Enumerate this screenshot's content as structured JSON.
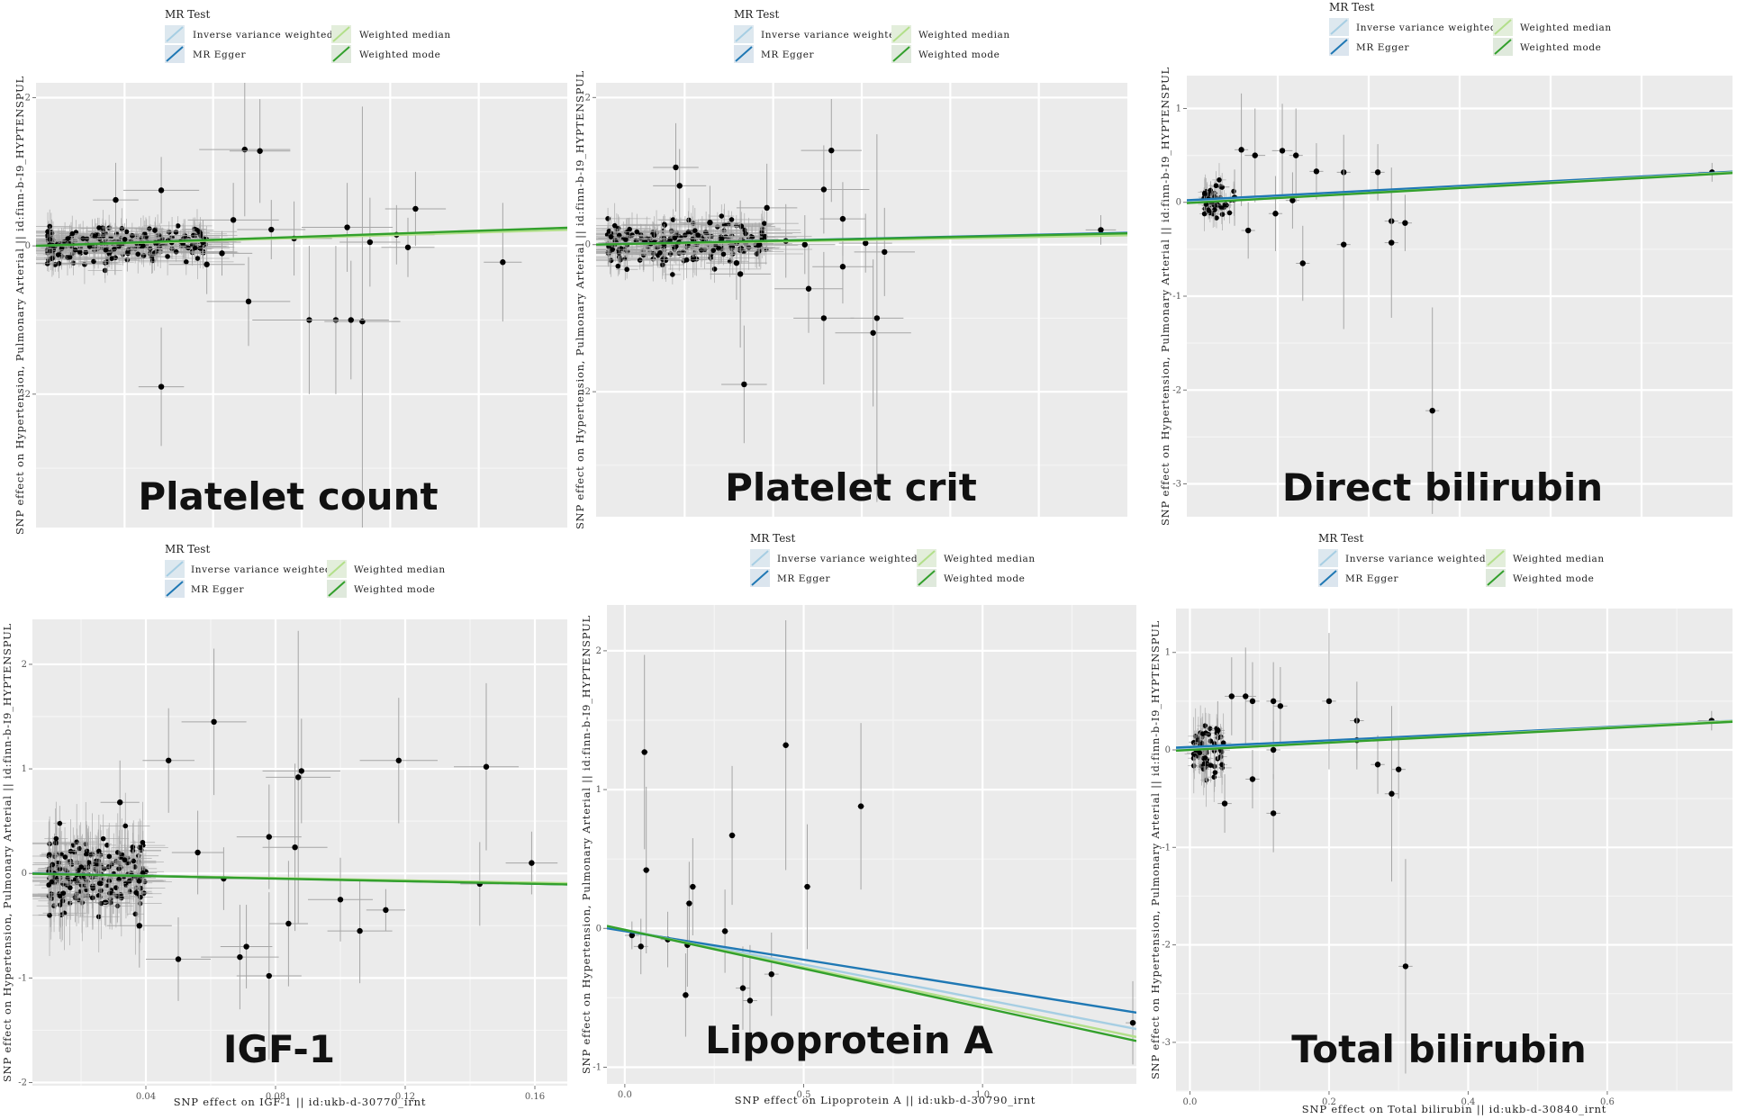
{
  "colors": {
    "panel_bg": "#ebebeb",
    "grid": "#ffffff",
    "point": "#000000",
    "errorbar": "#a6a6a6",
    "ivw": "#a6cee3",
    "mr_egger": "#1f78b4",
    "weighted_median": "#b2df8a",
    "weighted_mode": "#33a02c"
  },
  "legend": {
    "title": "MR Test",
    "items": [
      "Inverse variance weighted",
      "MR Egger",
      "Weighted median",
      "Weighted mode"
    ]
  },
  "chart_data": [
    {
      "type": "scatter",
      "title": "Platelet count",
      "xlabel": "",
      "ylabel": "SNP effect on Hypertension, Pulmonary Arterial || id:finn-b-I9_HYPTENSPUL",
      "xlim": [
        0,
        0.14
      ],
      "ylim": [
        -3.8,
        2.2
      ],
      "xticks": [],
      "yticks": [
        -2,
        0,
        2
      ],
      "ytick_labels": [
        "-2",
        "0",
        "2"
      ],
      "lines": [
        {
          "method": "Inverse variance weighted",
          "slope": 1.6,
          "intercept": 0
        },
        {
          "method": "MR Egger",
          "slope": 1.7,
          "intercept": 0
        },
        {
          "method": "Weighted median",
          "slope": 1.55,
          "intercept": 0
        },
        {
          "method": "Weighted mode",
          "slope": 1.75,
          "intercept": 0
        }
      ],
      "points": [
        {
          "x": 0.021,
          "y": 0.62,
          "xe": 0.006,
          "ye": 0.5
        },
        {
          "x": 0.033,
          "y": 0.75,
          "xe": 0.01,
          "ye": 0.45
        },
        {
          "x": 0.045,
          "y": -0.25,
          "xe": 0.01,
          "ye": 0.4
        },
        {
          "x": 0.052,
          "y": 0.35,
          "xe": 0.012,
          "ye": 0.5
        },
        {
          "x": 0.055,
          "y": 1.3,
          "xe": 0.012,
          "ye": 0.9
        },
        {
          "x": 0.056,
          "y": -0.75,
          "xe": 0.011,
          "ye": 0.6
        },
        {
          "x": 0.059,
          "y": 1.28,
          "xe": 0.008,
          "ye": 0.7
        },
        {
          "x": 0.068,
          "y": 0.1,
          "xe": 0.01,
          "ye": 0.5
        },
        {
          "x": 0.072,
          "y": -1.0,
          "xe": 0.015,
          "ye": 1.0
        },
        {
          "x": 0.079,
          "y": -1.0,
          "xe": 0.013,
          "ye": 1.0
        },
        {
          "x": 0.082,
          "y": 0.25,
          "xe": 0.012,
          "ye": 0.6
        },
        {
          "x": 0.086,
          "y": -1.02,
          "xe": 0.01,
          "ye": 2.9
        },
        {
          "x": 0.088,
          "y": 0.05,
          "xe": 0.008,
          "ye": 0.6
        },
        {
          "x": 0.095,
          "y": 0.15,
          "xe": 0.01,
          "ye": 0.4
        },
        {
          "x": 0.1,
          "y": 0.5,
          "xe": 0.008,
          "ye": 0.5
        },
        {
          "x": 0.033,
          "y": -1.9,
          "xe": 0.006,
          "ye": 0.8
        },
        {
          "x": 0.083,
          "y": -1.0,
          "xe": 0.01,
          "ye": 0.8
        },
        {
          "x": 0.123,
          "y": -0.22,
          "xe": 0.005,
          "ye": 0.8
        },
        {
          "x": 0.044,
          "y": 0.05,
          "xe": 0.01,
          "ye": 0.3
        },
        {
          "x": 0.062,
          "y": 0.22,
          "xe": 0.009,
          "ye": 0.4
        },
        {
          "x": 0.098,
          "y": -0.02,
          "xe": 0.007,
          "ye": 0.4
        },
        {
          "x": 0.049,
          "y": -0.1,
          "xe": 0.008,
          "ye": 0.3
        }
      ]
    },
    {
      "type": "scatter",
      "title": "Platelet crit",
      "xlabel": "",
      "ylabel": "SNP effect on Hypertension, Pulmonary Arterial || id:finn-b-I9_HYPTENSPUL",
      "xlim": [
        0,
        0.14
      ],
      "ylim": [
        -3.7,
        2.2
      ],
      "xticks": [],
      "yticks": [
        -2,
        0,
        2
      ],
      "ytick_labels": [
        "-2",
        "0",
        "2"
      ],
      "lines": [
        {
          "method": "Inverse variance weighted",
          "slope": 1.05,
          "intercept": 0
        },
        {
          "method": "MR Egger",
          "slope": 1.15,
          "intercept": 0
        },
        {
          "method": "Weighted median",
          "slope": 0.9,
          "intercept": 0
        },
        {
          "method": "Weighted mode",
          "slope": 1.1,
          "intercept": 0
        }
      ],
      "points": [
        {
          "x": 0.021,
          "y": 1.05,
          "xe": 0.006,
          "ye": 0.6
        },
        {
          "x": 0.022,
          "y": 0.8,
          "xe": 0.007,
          "ye": 0.5
        },
        {
          "x": 0.03,
          "y": 0.3,
          "xe": 0.008,
          "ye": 0.5
        },
        {
          "x": 0.037,
          "y": -0.25,
          "xe": 0.008,
          "ye": 0.5
        },
        {
          "x": 0.038,
          "y": -0.4,
          "xe": 0.008,
          "ye": 1.0
        },
        {
          "x": 0.045,
          "y": 0.5,
          "xe": 0.008,
          "ye": 0.6
        },
        {
          "x": 0.039,
          "y": -1.9,
          "xe": 0.006,
          "ye": 0.8
        },
        {
          "x": 0.056,
          "y": -0.6,
          "xe": 0.009,
          "ye": 0.6
        },
        {
          "x": 0.06,
          "y": 0.75,
          "xe": 0.012,
          "ye": 0.6
        },
        {
          "x": 0.062,
          "y": 1.28,
          "xe": 0.008,
          "ye": 0.7
        },
        {
          "x": 0.06,
          "y": -1.0,
          "xe": 0.008,
          "ye": 0.9
        },
        {
          "x": 0.065,
          "y": -0.3,
          "xe": 0.008,
          "ye": 0.5
        },
        {
          "x": 0.073,
          "y": -1.2,
          "xe": 0.01,
          "ye": 1.0
        },
        {
          "x": 0.074,
          "y": -1.0,
          "xe": 0.007,
          "ye": 2.5
        },
        {
          "x": 0.076,
          "y": -0.1,
          "xe": 0.008,
          "ye": 0.6
        },
        {
          "x": 0.065,
          "y": 0.35,
          "xe": 0.006,
          "ye": 0.5
        },
        {
          "x": 0.05,
          "y": 0.05,
          "xe": 0.01,
          "ye": 0.5
        },
        {
          "x": 0.133,
          "y": 0.2,
          "xe": 0.004,
          "ye": 0.2
        },
        {
          "x": 0.055,
          "y": 0.0,
          "xe": 0.008,
          "ye": 0.4
        },
        {
          "x": 0.071,
          "y": 0.02,
          "xe": 0.007,
          "ye": 0.4
        },
        {
          "x": 0.043,
          "y": 0.0,
          "xe": 0.008,
          "ye": 0.3
        }
      ]
    },
    {
      "type": "scatter",
      "title": "Direct bilirubin",
      "xlabel": "",
      "ylabel": "SNP effect on Hypertension, Pulmonary Arterial || id:finn-b-I9_HYPTENSPUL",
      "xlim": [
        -0.02,
        0.78
      ],
      "ylim": [
        -3.35,
        1.35
      ],
      "xticks": [],
      "yticks": [
        -3,
        -2,
        -1,
        0,
        1
      ],
      "ytick_labels": [
        "-3",
        "-2",
        "-1",
        "0",
        "1"
      ],
      "lines": [
        {
          "method": "Inverse variance weighted",
          "slope": 0.39,
          "intercept": 0.02
        },
        {
          "method": "MR Egger",
          "slope": 0.38,
          "intercept": 0.03
        },
        {
          "method": "Weighted median",
          "slope": 0.41,
          "intercept": 0.0
        },
        {
          "method": "Weighted mode",
          "slope": 0.4,
          "intercept": 0.0
        }
      ],
      "points": [
        {
          "x": 0.06,
          "y": 0.56,
          "xe": 0.01,
          "ye": 0.6
        },
        {
          "x": 0.08,
          "y": 0.5,
          "xe": 0.015,
          "ye": 0.5
        },
        {
          "x": 0.12,
          "y": 0.55,
          "xe": 0.015,
          "ye": 0.5
        },
        {
          "x": 0.14,
          "y": 0.5,
          "xe": 0.01,
          "ye": 0.5
        },
        {
          "x": 0.17,
          "y": 0.33,
          "xe": 0.01,
          "ye": 0.3
        },
        {
          "x": 0.21,
          "y": 0.32,
          "xe": 0.01,
          "ye": 0.4
        },
        {
          "x": 0.26,
          "y": 0.32,
          "xe": 0.01,
          "ye": 0.3
        },
        {
          "x": 0.135,
          "y": 0.02,
          "xe": 0.01,
          "ye": 0.3
        },
        {
          "x": 0.11,
          "y": -0.12,
          "xe": 0.01,
          "ye": 0.4
        },
        {
          "x": 0.15,
          "y": -0.65,
          "xe": 0.01,
          "ye": 0.4
        },
        {
          "x": 0.21,
          "y": -0.45,
          "xe": 0.01,
          "ye": 0.9
        },
        {
          "x": 0.28,
          "y": -0.2,
          "xe": 0.01,
          "ye": 0.3
        },
        {
          "x": 0.28,
          "y": -0.43,
          "xe": 0.01,
          "ye": 0.8
        },
        {
          "x": 0.3,
          "y": -0.22,
          "xe": 0.01,
          "ye": 0.3
        },
        {
          "x": 0.34,
          "y": -2.22,
          "xe": 0.01,
          "ye": 1.1
        },
        {
          "x": 0.75,
          "y": 0.32,
          "xe": 0.02,
          "ye": 0.1
        },
        {
          "x": 0.07,
          "y": -0.3,
          "xe": 0.01,
          "ye": 0.3
        },
        {
          "x": 0.05,
          "y": 0.05,
          "xe": 0.01,
          "ye": 0.3
        }
      ]
    },
    {
      "type": "scatter",
      "title": "IGF-1",
      "xlabel": "SNP effect on IGF-1 || id:ukb-d-30770_irnt",
      "ylabel": "SNP effect on Hypertension, Pulmonary Arterial || id:finn-b-I9_HYPTENSPUL",
      "xlim": [
        0.005,
        0.17
      ],
      "ylim": [
        -2.03,
        2.43
      ],
      "xticks": [
        0.04,
        0.08,
        0.12,
        0.16
      ],
      "xtick_labels": [
        "0.04",
        "0.08",
        "0.12",
        "0.16"
      ],
      "yticks": [
        -2,
        -1,
        0,
        1,
        2
      ],
      "ytick_labels": [
        "-2",
        "-1",
        "0",
        "1",
        "2"
      ],
      "lines": [
        {
          "method": "Inverse variance weighted",
          "slope": -0.6,
          "intercept": 0
        },
        {
          "method": "MR Egger",
          "slope": -0.65,
          "intercept": 0.005
        },
        {
          "method": "Weighted median",
          "slope": -0.55,
          "intercept": 0
        },
        {
          "method": "Weighted mode",
          "slope": -0.62,
          "intercept": 0
        }
      ],
      "points": [
        {
          "x": 0.032,
          "y": 0.68,
          "xe": 0.006,
          "ye": 0.4
        },
        {
          "x": 0.047,
          "y": 1.08,
          "xe": 0.008,
          "ye": 0.5
        },
        {
          "x": 0.061,
          "y": 1.45,
          "xe": 0.01,
          "ye": 0.7
        },
        {
          "x": 0.088,
          "y": 0.98,
          "xe": 0.012,
          "ye": 0.5
        },
        {
          "x": 0.087,
          "y": 0.92,
          "xe": 0.01,
          "ye": 1.4
        },
        {
          "x": 0.086,
          "y": 0.25,
          "xe": 0.01,
          "ye": 0.8
        },
        {
          "x": 0.078,
          "y": 0.35,
          "xe": 0.01,
          "ye": 0.5
        },
        {
          "x": 0.118,
          "y": 1.08,
          "xe": 0.012,
          "ye": 0.6
        },
        {
          "x": 0.145,
          "y": 1.02,
          "xe": 0.01,
          "ye": 0.8
        },
        {
          "x": 0.159,
          "y": 0.1,
          "xe": 0.008,
          "ye": 0.3
        },
        {
          "x": 0.143,
          "y": -0.1,
          "xe": 0.006,
          "ye": 0.4
        },
        {
          "x": 0.1,
          "y": -0.25,
          "xe": 0.01,
          "ye": 0.4
        },
        {
          "x": 0.106,
          "y": -0.55,
          "xe": 0.01,
          "ye": 0.5
        },
        {
          "x": 0.114,
          "y": -0.35,
          "xe": 0.006,
          "ye": 0.2
        },
        {
          "x": 0.084,
          "y": -0.48,
          "xe": 0.006,
          "ye": 0.6
        },
        {
          "x": 0.078,
          "y": -0.98,
          "xe": 0.01,
          "ye": 0.8
        },
        {
          "x": 0.069,
          "y": -0.8,
          "xe": 0.012,
          "ye": 0.5
        },
        {
          "x": 0.071,
          "y": -0.7,
          "xe": 0.008,
          "ye": 0.4
        },
        {
          "x": 0.05,
          "y": -0.82,
          "xe": 0.01,
          "ye": 0.4
        },
        {
          "x": 0.038,
          "y": -0.5,
          "xe": 0.01,
          "ye": 0.4
        },
        {
          "x": 0.056,
          "y": 0.2,
          "xe": 0.008,
          "ye": 0.4
        },
        {
          "x": 0.064,
          "y": -0.05,
          "xe": 0.008,
          "ye": 0.3
        }
      ]
    },
    {
      "type": "scatter",
      "title": "Lipoprotein A",
      "xlabel": "SNP effect on Lipoprotein A || id:ukb-d-30790_irnt",
      "ylabel": "SNP effect on Hypertension, Pulmonary Arterial || id:finn-b-I9_HYPTENSPUL",
      "xlim": [
        -0.05,
        1.43
      ],
      "ylim": [
        -1.12,
        2.33
      ],
      "xticks": [
        0.0,
        0.5,
        1.0
      ],
      "xtick_labels": [
        "0.0",
        "0.5",
        "1.0"
      ],
      "yticks": [
        -1,
        0,
        1,
        2
      ],
      "ytick_labels": [
        "-1",
        "0",
        "1",
        "2"
      ],
      "lines": [
        {
          "method": "Inverse variance weighted",
          "slope": -0.5,
          "intercept": -0.01
        },
        {
          "method": "MR Egger",
          "slope": -0.41,
          "intercept": -0.02
        },
        {
          "method": "Weighted median",
          "slope": -0.54,
          "intercept": -0.01
        },
        {
          "method": "Weighted mode",
          "slope": -0.56,
          "intercept": -0.01
        }
      ],
      "points": [
        {
          "x": 0.02,
          "y": -0.05,
          "xe": 0.02,
          "ye": 0.1
        },
        {
          "x": 0.045,
          "y": -0.13,
          "xe": 0.02,
          "ye": 0.2
        },
        {
          "x": 0.055,
          "y": 1.27,
          "xe": 0.01,
          "ye": 0.7
        },
        {
          "x": 0.06,
          "y": 0.42,
          "xe": 0.01,
          "ye": 0.6
        },
        {
          "x": 0.12,
          "y": -0.08,
          "xe": 0.02,
          "ye": 0.2
        },
        {
          "x": 0.17,
          "y": -0.48,
          "xe": 0.01,
          "ye": 0.3
        },
        {
          "x": 0.175,
          "y": -0.12,
          "xe": 0.01,
          "ye": 0.3
        },
        {
          "x": 0.18,
          "y": 0.18,
          "xe": 0.01,
          "ye": 0.3
        },
        {
          "x": 0.19,
          "y": 0.3,
          "xe": 0.01,
          "ye": 0.35
        },
        {
          "x": 0.28,
          "y": -0.02,
          "xe": 0.01,
          "ye": 0.3
        },
        {
          "x": 0.3,
          "y": 0.67,
          "xe": 0.01,
          "ye": 0.5
        },
        {
          "x": 0.33,
          "y": -0.43,
          "xe": 0.02,
          "ye": 0.3
        },
        {
          "x": 0.35,
          "y": -0.52,
          "xe": 0.02,
          "ye": 0.4
        },
        {
          "x": 0.41,
          "y": -0.33,
          "xe": 0.02,
          "ye": 0.3
        },
        {
          "x": 0.45,
          "y": 1.32,
          "xe": 0.01,
          "ye": 0.9
        },
        {
          "x": 0.51,
          "y": 0.3,
          "xe": 0.01,
          "ye": 0.45
        },
        {
          "x": 0.66,
          "y": 0.88,
          "xe": 0.01,
          "ye": 0.6
        },
        {
          "x": 1.42,
          "y": -0.68,
          "xe": 0.02,
          "ye": 0.3
        }
      ]
    },
    {
      "type": "scatter",
      "title": "Total bilirubin",
      "xlabel": "SNP effect on Total bilirubin || id:ukb-d-30840_irnt",
      "ylabel": "SNP effect on Hypertension, Pulmonary Arterial || id:finn-b-I9_HYPTENSPUL",
      "xlim": [
        -0.02,
        0.78
      ],
      "ylim": [
        -3.5,
        1.45
      ],
      "xticks": [
        0.0,
        0.2,
        0.4,
        0.6
      ],
      "xtick_labels": [
        "0.0",
        "0.2",
        "0.4",
        "0.6"
      ],
      "yticks": [
        -3,
        -2,
        -1,
        0,
        1
      ],
      "ytick_labels": [
        "-3",
        "-2",
        "-1",
        "0",
        "1"
      ],
      "lines": [
        {
          "method": "Inverse variance weighted",
          "slope": 0.36,
          "intercept": 0.02
        },
        {
          "method": "MR Egger",
          "slope": 0.34,
          "intercept": 0.03
        },
        {
          "method": "Weighted median",
          "slope": 0.38,
          "intercept": 0.0
        },
        {
          "method": "Weighted mode",
          "slope": 0.37,
          "intercept": 0.0
        }
      ],
      "points": [
        {
          "x": 0.06,
          "y": 0.55,
          "xe": 0.01,
          "ye": 0.4
        },
        {
          "x": 0.08,
          "y": 0.55,
          "xe": 0.015,
          "ye": 0.5
        },
        {
          "x": 0.09,
          "y": 0.5,
          "xe": 0.01,
          "ye": 0.4
        },
        {
          "x": 0.12,
          "y": 0.5,
          "xe": 0.01,
          "ye": 0.4
        },
        {
          "x": 0.13,
          "y": 0.45,
          "xe": 0.01,
          "ye": 0.4
        },
        {
          "x": 0.2,
          "y": 0.5,
          "xe": 0.01,
          "ye": 0.7
        },
        {
          "x": 0.24,
          "y": 0.3,
          "xe": 0.01,
          "ye": 0.4
        },
        {
          "x": 0.24,
          "y": 0.1,
          "xe": 0.01,
          "ye": 0.3
        },
        {
          "x": 0.27,
          "y": -0.15,
          "xe": 0.01,
          "ye": 0.3
        },
        {
          "x": 0.29,
          "y": -0.45,
          "xe": 0.01,
          "ye": 0.9
        },
        {
          "x": 0.3,
          "y": -0.2,
          "xe": 0.01,
          "ye": 0.3
        },
        {
          "x": 0.31,
          "y": -2.22,
          "xe": 0.01,
          "ye": 1.1
        },
        {
          "x": 0.12,
          "y": -0.65,
          "xe": 0.01,
          "ye": 0.4
        },
        {
          "x": 0.05,
          "y": -0.55,
          "xe": 0.01,
          "ye": 0.3
        },
        {
          "x": 0.09,
          "y": -0.3,
          "xe": 0.01,
          "ye": 0.3
        },
        {
          "x": 0.75,
          "y": 0.3,
          "xe": 0.02,
          "ye": 0.1
        },
        {
          "x": 0.12,
          "y": 0.0,
          "xe": 0.01,
          "ye": 0.3
        },
        {
          "x": 0.04,
          "y": 0.2,
          "xe": 0.01,
          "ye": 0.3
        }
      ]
    }
  ]
}
